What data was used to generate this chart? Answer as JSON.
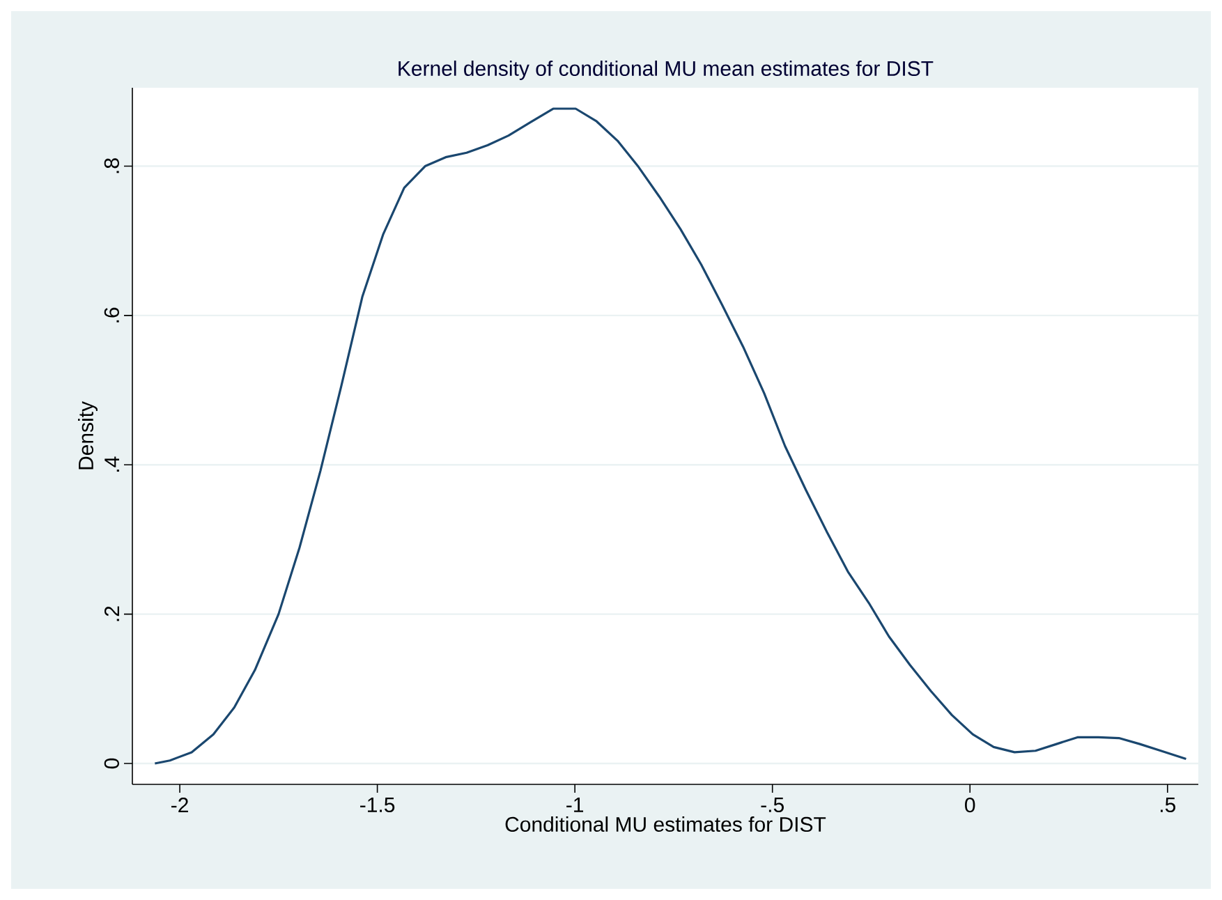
{
  "chart_data": {
    "type": "line",
    "title": "Kernel density of conditional MU mean estimates for DIST",
    "xlabel": "Conditional MU estimates for DIST",
    "ylabel": "Density",
    "x": [
      -2.063,
      -2.025,
      -1.97,
      -1.915,
      -1.862,
      -1.81,
      -1.75,
      -1.697,
      -1.644,
      -1.591,
      -1.538,
      -1.485,
      -1.432,
      -1.379,
      -1.327,
      -1.274,
      -1.221,
      -1.168,
      -1.115,
      -1.055,
      -0.998,
      -0.945,
      -0.892,
      -0.839,
      -0.786,
      -0.733,
      -0.68,
      -0.627,
      -0.574,
      -0.521,
      -0.468,
      -0.415,
      -0.362,
      -0.309,
      -0.256,
      -0.205,
      -0.152,
      -0.099,
      -0.046,
      0.007,
      0.06,
      0.113,
      0.166,
      0.219,
      0.272,
      0.325,
      0.377,
      0.43,
      0.483,
      0.547
    ],
    "series": [
      {
        "color": "#1a476f",
        "values": [
          0.0,
          0.004,
          0.015,
          0.039,
          0.075,
          0.125,
          0.2,
          0.289,
          0.392,
          0.506,
          0.625,
          0.709,
          0.771,
          0.8,
          0.812,
          0.818,
          0.828,
          0.841,
          0.858,
          0.877,
          0.877,
          0.86,
          0.834,
          0.799,
          0.759,
          0.716,
          0.668,
          0.614,
          0.558,
          0.496,
          0.425,
          0.366,
          0.31,
          0.257,
          0.215,
          0.17,
          0.132,
          0.097,
          0.065,
          0.039,
          0.022,
          0.015,
          0.017,
          0.026,
          0.035,
          0.035,
          0.034,
          0.026,
          0.017,
          0.006
        ]
      }
    ],
    "xlim": [
      -2.12,
      0.578
    ],
    "ylim": [
      -0.028,
      0.905
    ],
    "xticks": [
      -2,
      -1.5,
      -1,
      {
        "value": -0.5,
        "label": "-.5"
      },
      0,
      {
        "value": 0.5,
        "label": ".5"
      }
    ],
    "yticks": [
      0,
      {
        "value": 0.2,
        "label": ".2"
      },
      {
        "value": 0.4,
        "label": ".4"
      },
      {
        "value": 0.6,
        "label": ".6"
      },
      {
        "value": 0.8,
        "label": ".8"
      }
    ],
    "grid": "y",
    "marker": "none",
    "line_style": "solid"
  }
}
